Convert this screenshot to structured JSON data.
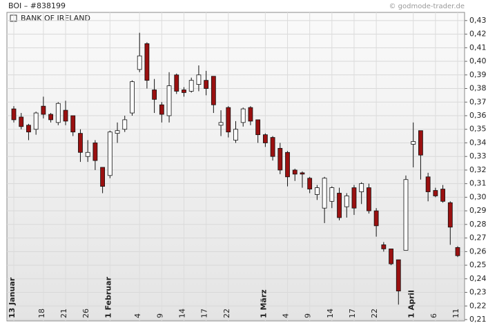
{
  "chart_data": {
    "type": "candlestick",
    "title": "BOI – #838199",
    "source": "© godmode-trader.de",
    "categories": [
      "13 Januar",
      null,
      null,
      null,
      "18",
      null,
      null,
      "21",
      null,
      null,
      "26",
      null,
      null,
      "1 Februar",
      null,
      null,
      null,
      "4",
      null,
      null,
      "9",
      null,
      null,
      "14",
      null,
      null,
      "17",
      null,
      null,
      "22",
      null,
      null,
      null,
      null,
      "1 März",
      null,
      null,
      "4",
      null,
      null,
      "9",
      null,
      null,
      "14",
      null,
      null,
      "17",
      null,
      null,
      "22",
      null,
      null,
      null,
      null,
      "1 April",
      null,
      null,
      "6",
      null,
      null,
      "11"
    ],
    "series": [
      {
        "name": "BANK OF IRELAND",
        "up_color": "#ffffff",
        "down_color": "#9a1010",
        "open": [
          0.365,
          0.359,
          0.353,
          0.35,
          0.367,
          0.361,
          0.355,
          0.364,
          0.36,
          0.347,
          0.33,
          0.34,
          0.322,
          0.316,
          0.347,
          0.35,
          0.362,
          0.394,
          0.413,
          0.379,
          0.368,
          0.36,
          0.39,
          0.379,
          0.378,
          0.383,
          0.386,
          0.389,
          0.353,
          0.366,
          0.342,
          0.355,
          0.366,
          0.357,
          0.346,
          0.344,
          0.336,
          0.333,
          0.32,
          0.318,
          0.314,
          0.302,
          0.292,
          0.297,
          0.303,
          0.293,
          0.307,
          0.304,
          0.307,
          0.29,
          0.265,
          0.262,
          0.254,
          0.261,
          0.339,
          0.349,
          0.315,
          0.305,
          0.306,
          0.296,
          0.263
        ],
        "high": [
          0.367,
          0.362,
          0.354,
          0.363,
          0.374,
          0.362,
          0.37,
          0.371,
          0.36,
          0.35,
          0.342,
          0.342,
          0.322,
          0.349,
          0.355,
          0.36,
          0.386,
          0.421,
          0.414,
          0.387,
          0.37,
          0.392,
          0.391,
          0.381,
          0.388,
          0.397,
          0.393,
          0.389,
          0.364,
          0.367,
          0.356,
          0.366,
          0.367,
          0.357,
          0.347,
          0.345,
          0.34,
          0.334,
          0.321,
          0.319,
          0.315,
          0.309,
          0.315,
          0.308,
          0.307,
          0.303,
          0.309,
          0.311,
          0.31,
          0.292,
          0.267,
          0.262,
          0.254,
          0.316,
          0.355,
          0.349,
          0.318,
          0.307,
          0.309,
          0.297,
          0.264
        ],
        "low": [
          0.355,
          0.35,
          0.342,
          0.346,
          0.358,
          0.355,
          0.353,
          0.353,
          0.345,
          0.326,
          0.326,
          0.32,
          0.303,
          0.314,
          0.34,
          0.348,
          0.36,
          0.392,
          0.38,
          0.362,
          0.355,
          0.355,
          0.376,
          0.374,
          0.377,
          0.378,
          0.375,
          0.362,
          0.345,
          0.344,
          0.34,
          0.352,
          0.353,
          0.34,
          0.337,
          0.327,
          0.317,
          0.308,
          0.312,
          0.307,
          0.303,
          0.298,
          0.281,
          0.292,
          0.283,
          0.285,
          0.287,
          0.295,
          0.288,
          0.271,
          0.26,
          0.25,
          0.221,
          0.261,
          0.322,
          0.313,
          0.297,
          0.3,
          0.296,
          0.265,
          0.256
        ],
        "close": [
          0.357,
          0.352,
          0.348,
          0.362,
          0.361,
          0.357,
          0.369,
          0.356,
          0.348,
          0.333,
          0.333,
          0.327,
          0.308,
          0.348,
          0.349,
          0.357,
          0.385,
          0.404,
          0.386,
          0.372,
          0.361,
          0.382,
          0.378,
          0.377,
          0.386,
          0.39,
          0.38,
          0.368,
          0.355,
          0.348,
          0.35,
          0.365,
          0.356,
          0.346,
          0.34,
          0.33,
          0.32,
          0.315,
          0.317,
          0.317,
          0.306,
          0.307,
          0.314,
          0.307,
          0.285,
          0.301,
          0.292,
          0.31,
          0.29,
          0.279,
          0.262,
          0.251,
          0.231,
          0.313,
          0.341,
          0.331,
          0.304,
          0.301,
          0.297,
          0.278,
          0.257
        ]
      }
    ],
    "ylim": [
      0.209,
      0.436
    ],
    "yticks": [
      {
        "value": 0.21,
        "label": "0,21"
      },
      {
        "value": 0.22,
        "label": "0,22"
      },
      {
        "value": 0.23,
        "label": "0,23"
      },
      {
        "value": 0.24,
        "label": "0,24"
      },
      {
        "value": 0.25,
        "label": "0,25"
      },
      {
        "value": 0.26,
        "label": "0,26"
      },
      {
        "value": 0.27,
        "label": "0,27"
      },
      {
        "value": 0.28,
        "label": "0,28"
      },
      {
        "value": 0.29,
        "label": "0,29"
      },
      {
        "value": 0.3,
        "label": "0,30"
      },
      {
        "value": 0.31,
        "label": "0,31"
      },
      {
        "value": 0.32,
        "label": "0,32"
      },
      {
        "value": 0.33,
        "label": "0,33"
      },
      {
        "value": 0.34,
        "label": "0,34"
      },
      {
        "value": 0.35,
        "label": "0,35"
      },
      {
        "value": 0.36,
        "label": "0,36"
      },
      {
        "value": 0.37,
        "label": "0,37"
      },
      {
        "value": 0.38,
        "label": "0,38"
      },
      {
        "value": 0.39,
        "label": "0,39"
      },
      {
        "value": 0.4,
        "label": "0,40"
      },
      {
        "value": 0.41,
        "label": "0,41"
      },
      {
        "value": 0.42,
        "label": "0,42"
      },
      {
        "value": 0.43,
        "label": "0,43"
      }
    ],
    "grid": true
  }
}
